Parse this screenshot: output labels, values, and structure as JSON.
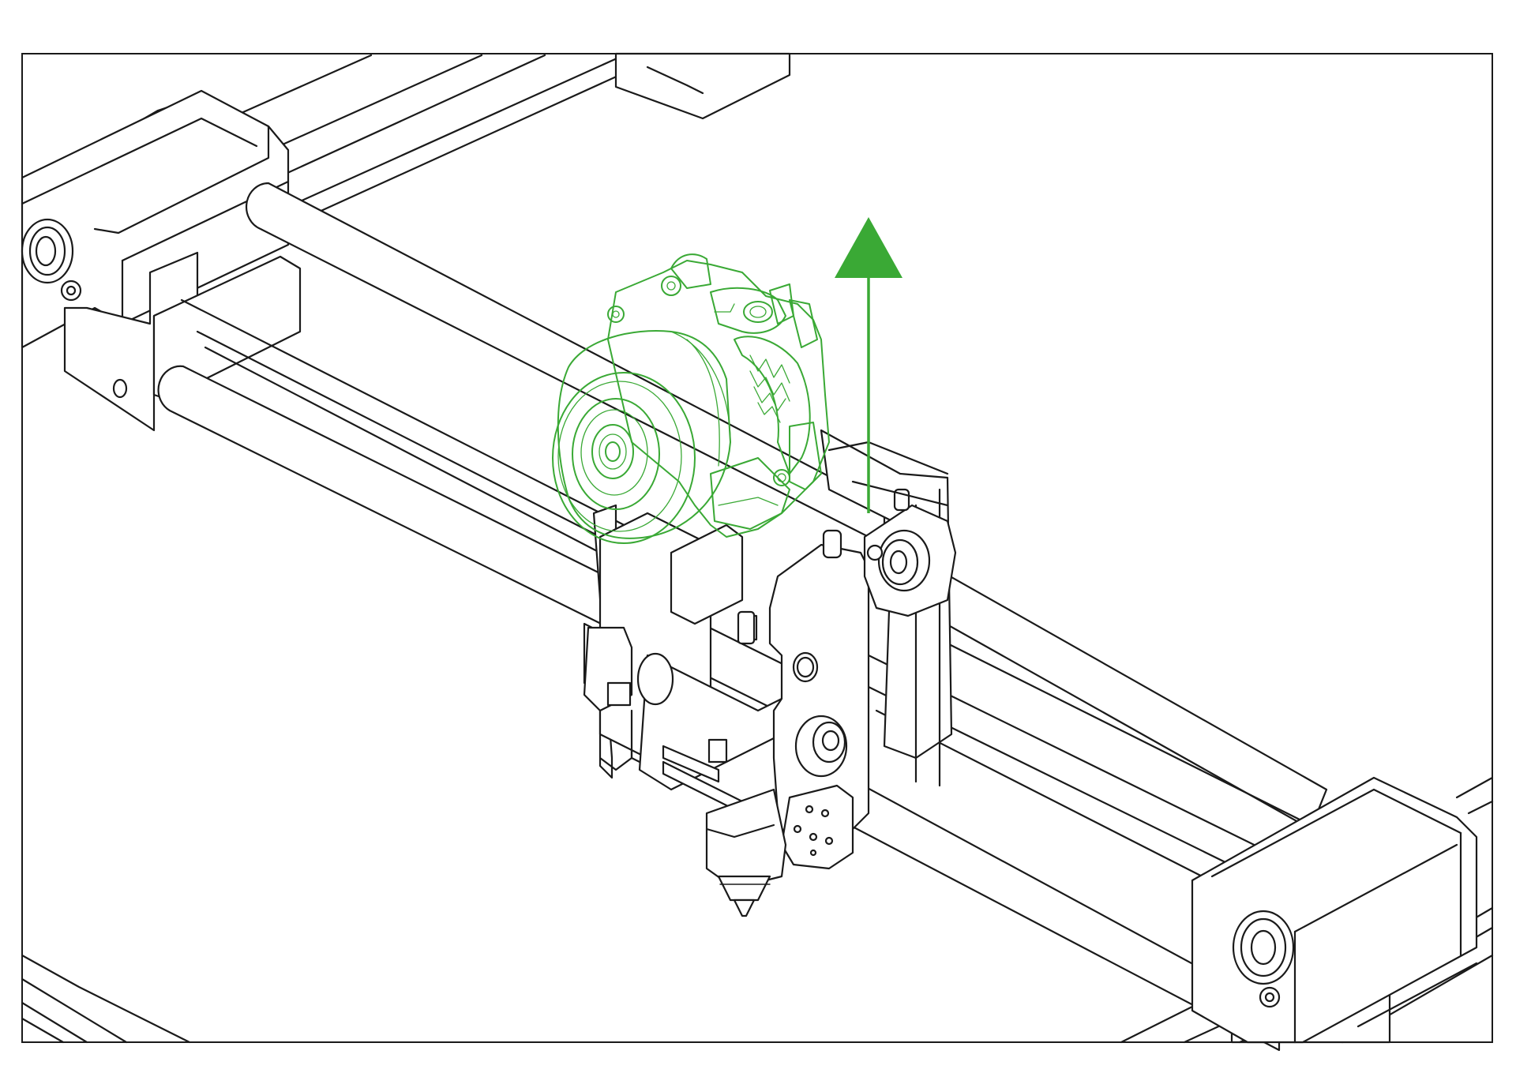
{
  "colors": {
    "accent": "#3aa935",
    "line": "#1a1a1a",
    "background": "#ffffff"
  },
  "figure": {
    "highlighted_part": "extruder-motor-assembly",
    "arrow_direction": "up",
    "icons": [
      "up-arrow-icon"
    ]
  }
}
